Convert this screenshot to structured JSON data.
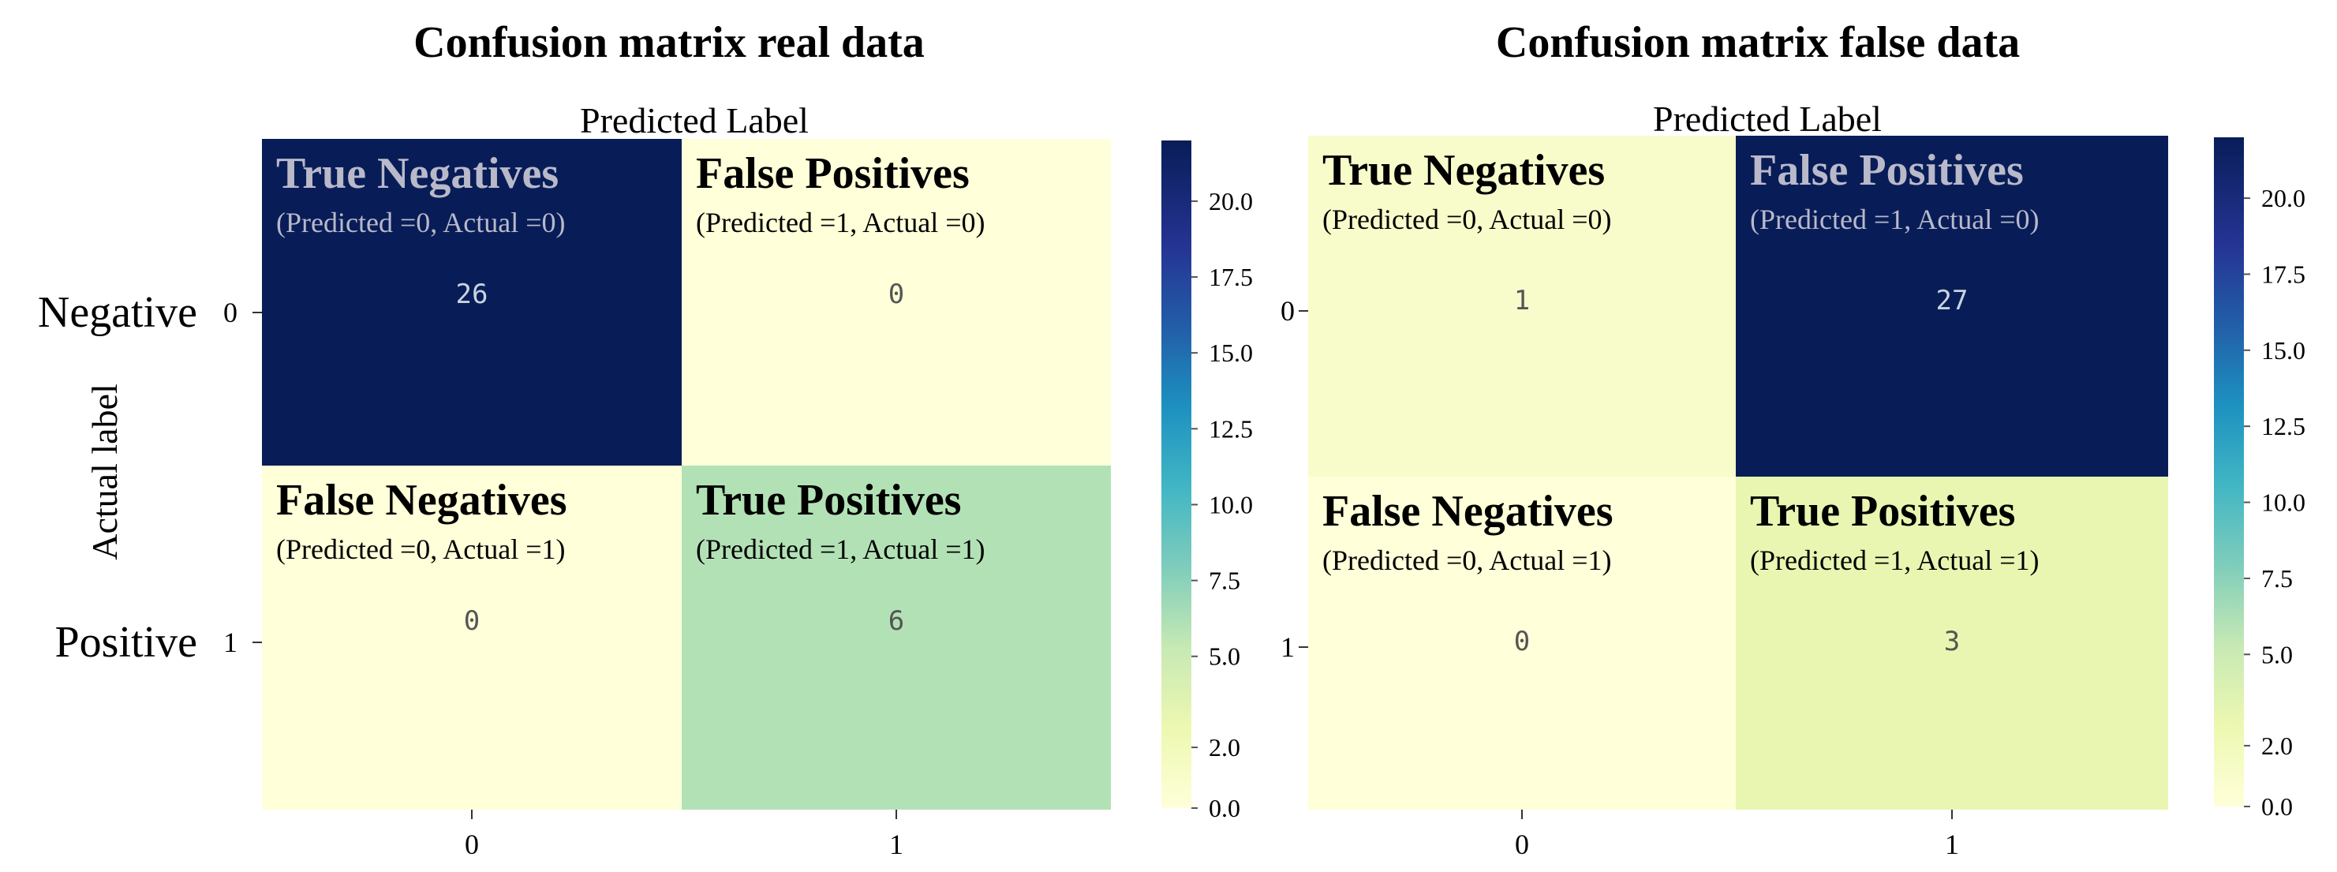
{
  "chart_data": [
    {
      "type": "heatmap",
      "title": "Confusion matrix real data",
      "xlabel": "Predicted Label",
      "ylabel": "Actual label",
      "x_tick_labels": [
        "0",
        "1"
      ],
      "y_tick_labels": [
        "0",
        "1"
      ],
      "y_category_labels": [
        "Negative",
        "Positive"
      ],
      "colormap": "YlGnBu",
      "vmin": 0,
      "vmax": 22,
      "colorbar_ticks": [
        "0.0",
        "2.0",
        "5.0",
        "7.5",
        "10.0",
        "12.5",
        "15.0",
        "17.5",
        "20.0"
      ],
      "cells": [
        {
          "row": 0,
          "col": 0,
          "value": 26,
          "title": "True Negatives",
          "subtitle": "(Predicted =0, Actual =0)"
        },
        {
          "row": 0,
          "col": 1,
          "value": 0,
          "title": "False Positives",
          "subtitle": "(Predicted =1, Actual =0)"
        },
        {
          "row": 1,
          "col": 0,
          "value": 0,
          "title": "False Negatives",
          "subtitle": "(Predicted =0, Actual =1)"
        },
        {
          "row": 1,
          "col": 1,
          "value": 6,
          "title": "True Positives",
          "subtitle": "(Predicted =1, Actual =1)"
        }
      ]
    },
    {
      "type": "heatmap",
      "title": "Confusion matrix false data",
      "xlabel": "Predicted Label",
      "ylabel": "",
      "x_tick_labels": [
        "0",
        "1"
      ],
      "y_tick_labels": [
        "0",
        "1"
      ],
      "y_category_labels": [],
      "colormap": "YlGnBu",
      "vmin": 0,
      "vmax": 22,
      "colorbar_ticks": [
        "0.0",
        "2.0",
        "5.0",
        "7.5",
        "10.0",
        "12.5",
        "15.0",
        "17.5",
        "20.0"
      ],
      "cells": [
        {
          "row": 0,
          "col": 0,
          "value": 1,
          "title": "True Negatives",
          "subtitle": "(Predicted =0, Actual =0)"
        },
        {
          "row": 0,
          "col": 1,
          "value": 27,
          "title": "False Positives",
          "subtitle": "(Predicted =1, Actual =0)"
        },
        {
          "row": 1,
          "col": 0,
          "value": 0,
          "title": "False Negatives",
          "subtitle": "(Predicted =0, Actual =1)"
        },
        {
          "row": 1,
          "col": 1,
          "value": 3,
          "title": "True Positives",
          "subtitle": "(Predicted =1, Actual =1)"
        }
      ]
    }
  ]
}
